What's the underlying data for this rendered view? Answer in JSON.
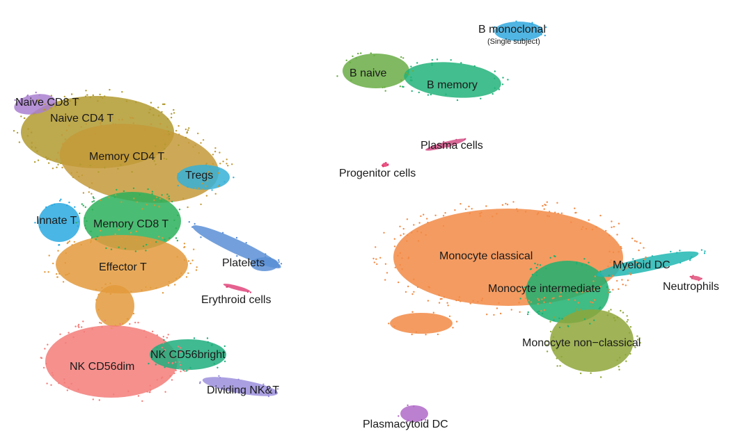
{
  "chart_data": {
    "type": "scatter",
    "title": "",
    "xlabel": "",
    "ylabel": "",
    "grid": false,
    "legend": "none",
    "clusters": [
      {
        "name": "Naive CD8 T",
        "color": "#a97fd0"
      },
      {
        "name": "Naive CD4 T",
        "color": "#b19a2f"
      },
      {
        "name": "Memory CD4 T",
        "color": "#c49a3a"
      },
      {
        "name": "Tregs",
        "color": "#36b0d6"
      },
      {
        "name": "Innate T",
        "color": "#2aa9e0"
      },
      {
        "name": "Memory CD8 T",
        "color": "#2bb05a"
      },
      {
        "name": "Effector T",
        "color": "#e39a3c"
      },
      {
        "name": "Platelets",
        "color": "#5b8fd6"
      },
      {
        "name": "Erythroid cells",
        "color": "#e0457b"
      },
      {
        "name": "NK CD56dim",
        "color": "#f37d79"
      },
      {
        "name": "NK CD56bright",
        "color": "#1fae7c"
      },
      {
        "name": "Dividing NK&T",
        "color": "#9b8fdc"
      },
      {
        "name": "B naive",
        "color": "#6aad45"
      },
      {
        "name": "B memory",
        "color": "#22b37a"
      },
      {
        "name": "B monoclonal",
        "subtitle": "(Single subject)",
        "color": "#31a8de"
      },
      {
        "name": "Plasma cells",
        "color": "#d44f86"
      },
      {
        "name": "Progenitor cells",
        "color": "#e33a70"
      },
      {
        "name": "Monocyte classical",
        "color": "#f28a45"
      },
      {
        "name": "Monocyte intermediate",
        "color": "#1fb070"
      },
      {
        "name": "Monocyte non−classical",
        "color": "#8fa63a"
      },
      {
        "name": "Myeloid DC",
        "color": "#20b7b3"
      },
      {
        "name": "Neutrophils",
        "color": "#e0507a"
      },
      {
        "name": "Plasmacytoid DC",
        "color": "#b06ac8"
      }
    ]
  }
}
